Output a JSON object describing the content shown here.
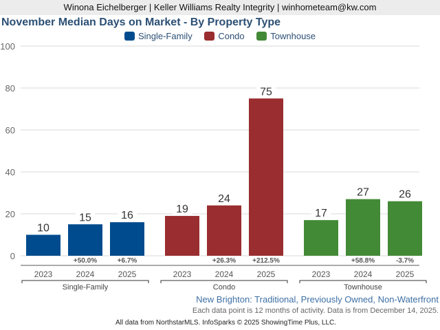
{
  "header": {
    "text": "Winona Eichelberger | Keller Williams Realty Integrity | winhometeam@kw.com"
  },
  "chart_data": {
    "type": "bar",
    "title": "November Median Days on Market - By Property Type",
    "ylim": [
      0,
      100
    ],
    "yticks": [
      0,
      20,
      40,
      60,
      80,
      100
    ],
    "grid": true,
    "legend_position": "top-center",
    "legend": [
      "Single-Family",
      "Condo",
      "Townhouse"
    ],
    "groups": [
      {
        "name": "Single-Family",
        "color": "#004b8d",
        "years": [
          "2023",
          "2024",
          "2025"
        ],
        "values": [
          10,
          15,
          16
        ],
        "changes": [
          "",
          "+50.0%",
          "+6.7%"
        ]
      },
      {
        "name": "Condo",
        "color": "#9a2d2f",
        "years": [
          "2023",
          "2024",
          "2025"
        ],
        "values": [
          19,
          24,
          75
        ],
        "changes": [
          "",
          "+26.3%",
          "+212.5%"
        ]
      },
      {
        "name": "Townhouse",
        "color": "#438a37",
        "years": [
          "2023",
          "2024",
          "2025"
        ],
        "values": [
          17,
          27,
          26
        ],
        "changes": [
          "",
          "+58.8%",
          "-3.7%"
        ]
      }
    ]
  },
  "subtitle": "New Brighton: Traditional, Previously Owned, Non-Waterfront",
  "note": "Each data point is 12 months of activity. Data is from December 14, 2025.",
  "footer": "All data from NorthstarMLS. InfoSparks © 2025 ShowingTime Plus, LLC."
}
